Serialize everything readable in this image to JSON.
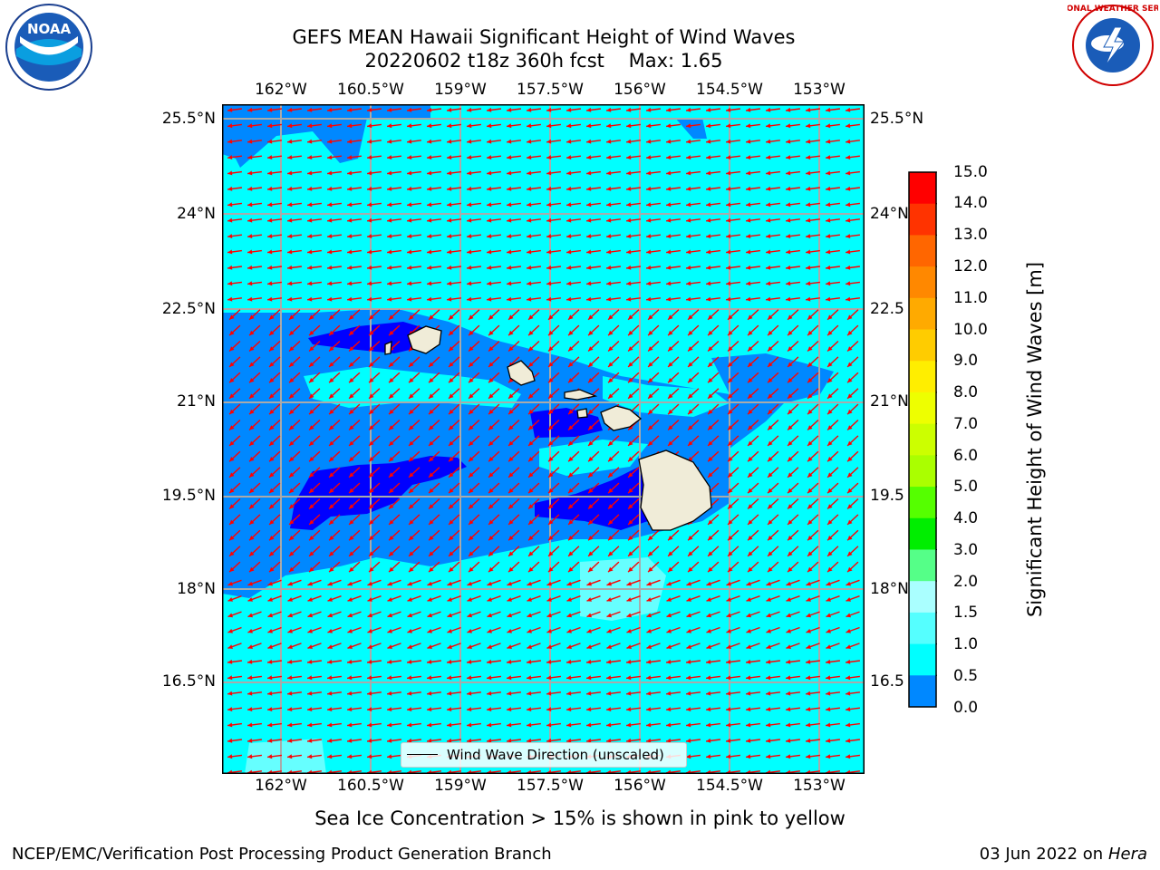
{
  "title": {
    "line1": "GEFS MEAN Hawaii Significant Height of Wind Waves",
    "line2_run": "20220602 t18z 360h fcst",
    "line2_max": "Max: 1.65"
  },
  "map": {
    "lon_ticks": [
      "162°W",
      "160.5°W",
      "159°W",
      "157.5°W",
      "156°W",
      "154.5°W",
      "153°W"
    ],
    "lat_ticks": [
      "25.5°N",
      "24°N",
      "22.5°N",
      "21°N",
      "19.5°N",
      "18°N",
      "16.5°N"
    ],
    "lat_ticks_right": [
      "25.5°N",
      "24°N",
      "22.5",
      "21°N",
      "19.5",
      "18°N",
      "16.5"
    ],
    "legend_label": "Wind Wave Direction (unscaled)",
    "ocean_color": "#00ffff",
    "land_color": "#f0ecd8",
    "arrow_color": "#ff0000"
  },
  "colorbar": {
    "label": "Significant Height of Wind Waves [m]",
    "levels": [
      "15.0",
      "14.0",
      "13.0",
      "12.0",
      "11.0",
      "10.0",
      "9.0",
      "8.0",
      "7.0",
      "6.0",
      "5.0",
      "4.0",
      "3.0",
      "2.0",
      "1.5",
      "1.0",
      "0.5",
      "0.0"
    ],
    "colors_top_to_bottom": [
      "#ff0000",
      "#ff3300",
      "#ff6600",
      "#ff8800",
      "#ffaa00",
      "#ffcc00",
      "#ffee00",
      "#eeff00",
      "#ccff00",
      "#aaff00",
      "#55ff00",
      "#00ee00",
      "#55ff88",
      "#aaffff",
      "#55ffff",
      "#00ffff",
      "#0088ff",
      "#0000ff"
    ]
  },
  "notes": {
    "sea_ice": "Sea Ice Concentration > 15% is shown in pink to yellow"
  },
  "footer": {
    "left": "NCEP/EMC/Verification Post Processing Product Generation Branch",
    "date": "03 Jun 2022 on",
    "machine": "Hera"
  },
  "logos": {
    "left": "noaa-logo",
    "left_text": "NOAA",
    "right": "nws-logo",
    "right_text": "NATIONAL WEATHER SERVICE"
  }
}
